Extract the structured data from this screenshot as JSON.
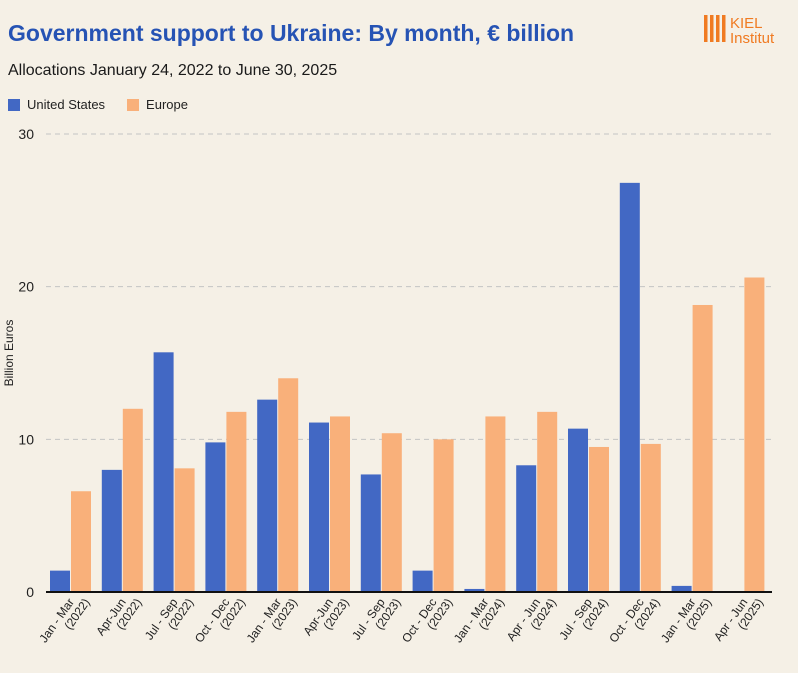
{
  "header": {
    "title": "Government support to Ukraine: By month, € billion",
    "subtitle": "Allocations January 24, 2022 to June 30, 2025",
    "logo_line1": "KIEL",
    "logo_line2": "Institut"
  },
  "colors": {
    "us": "#4268c4",
    "europe": "#f9b07a",
    "title": "#2653b4",
    "logo": "#f07b22",
    "grid": "#c4c4c4"
  },
  "chart_data": {
    "type": "bar",
    "title": "Government support to Ukraine: By month, € billion",
    "xlabel": "",
    "ylabel": "Billion Euros",
    "ylim": [
      0,
      30
    ],
    "yticks": [
      0,
      10,
      20,
      30
    ],
    "legend": "top-left",
    "grid": true,
    "categories": [
      [
        "Jan - Mar",
        "(2022)"
      ],
      [
        "Apr-Jun",
        "(2022)"
      ],
      [
        "Jul - Sep",
        "(2022)"
      ],
      [
        "Oct - Dec",
        "(2022)"
      ],
      [
        "Jan - Mar",
        "(2023)"
      ],
      [
        "Apr-Jun",
        "(2023)"
      ],
      [
        "Jul - Sep",
        "(2023)"
      ],
      [
        "Oct - Dec",
        "(2023)"
      ],
      [
        "Jan - Mar",
        "(2024)"
      ],
      [
        "Apr - Jun",
        "(2024)"
      ],
      [
        "Jul - Sep",
        "(2024)"
      ],
      [
        "Oct - Dec",
        "(2024)"
      ],
      [
        "Jan - Mar",
        "(2025)"
      ],
      [
        "Apr - Jun",
        "(2025)"
      ]
    ],
    "series": [
      {
        "name": "United States",
        "key": "us",
        "values": [
          1.4,
          8.0,
          15.7,
          9.8,
          12.6,
          11.1,
          7.7,
          1.4,
          0.2,
          8.3,
          10.7,
          26.8,
          0.4,
          0.0
        ]
      },
      {
        "name": "Europe",
        "key": "europe",
        "values": [
          6.6,
          12.0,
          8.1,
          11.8,
          14.0,
          11.5,
          10.4,
          10.0,
          11.5,
          11.8,
          9.5,
          9.7,
          18.8,
          20.6
        ]
      }
    ]
  }
}
